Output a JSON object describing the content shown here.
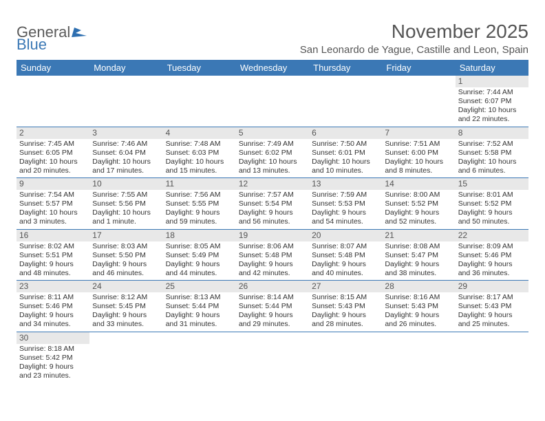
{
  "logo": {
    "text1": "General",
    "text2": "Blue"
  },
  "title": "November 2025",
  "location": "San Leonardo de Yague, Castille and Leon, Spain",
  "weekdays": [
    "Sunday",
    "Monday",
    "Tuesday",
    "Wednesday",
    "Thursday",
    "Friday",
    "Saturday"
  ],
  "header_bg": "#3b78b5",
  "daynum_bg": "#e8e8e8",
  "weeks": [
    [
      null,
      null,
      null,
      null,
      null,
      null,
      {
        "n": "1",
        "sr": "Sunrise: 7:44 AM",
        "ss": "Sunset: 6:07 PM",
        "dl": "Daylight: 10 hours and 22 minutes."
      }
    ],
    [
      {
        "n": "2",
        "sr": "Sunrise: 7:45 AM",
        "ss": "Sunset: 6:05 PM",
        "dl": "Daylight: 10 hours and 20 minutes."
      },
      {
        "n": "3",
        "sr": "Sunrise: 7:46 AM",
        "ss": "Sunset: 6:04 PM",
        "dl": "Daylight: 10 hours and 17 minutes."
      },
      {
        "n": "4",
        "sr": "Sunrise: 7:48 AM",
        "ss": "Sunset: 6:03 PM",
        "dl": "Daylight: 10 hours and 15 minutes."
      },
      {
        "n": "5",
        "sr": "Sunrise: 7:49 AM",
        "ss": "Sunset: 6:02 PM",
        "dl": "Daylight: 10 hours and 13 minutes."
      },
      {
        "n": "6",
        "sr": "Sunrise: 7:50 AM",
        "ss": "Sunset: 6:01 PM",
        "dl": "Daylight: 10 hours and 10 minutes."
      },
      {
        "n": "7",
        "sr": "Sunrise: 7:51 AM",
        "ss": "Sunset: 6:00 PM",
        "dl": "Daylight: 10 hours and 8 minutes."
      },
      {
        "n": "8",
        "sr": "Sunrise: 7:52 AM",
        "ss": "Sunset: 5:58 PM",
        "dl": "Daylight: 10 hours and 6 minutes."
      }
    ],
    [
      {
        "n": "9",
        "sr": "Sunrise: 7:54 AM",
        "ss": "Sunset: 5:57 PM",
        "dl": "Daylight: 10 hours and 3 minutes."
      },
      {
        "n": "10",
        "sr": "Sunrise: 7:55 AM",
        "ss": "Sunset: 5:56 PM",
        "dl": "Daylight: 10 hours and 1 minute."
      },
      {
        "n": "11",
        "sr": "Sunrise: 7:56 AM",
        "ss": "Sunset: 5:55 PM",
        "dl": "Daylight: 9 hours and 59 minutes."
      },
      {
        "n": "12",
        "sr": "Sunrise: 7:57 AM",
        "ss": "Sunset: 5:54 PM",
        "dl": "Daylight: 9 hours and 56 minutes."
      },
      {
        "n": "13",
        "sr": "Sunrise: 7:59 AM",
        "ss": "Sunset: 5:53 PM",
        "dl": "Daylight: 9 hours and 54 minutes."
      },
      {
        "n": "14",
        "sr": "Sunrise: 8:00 AM",
        "ss": "Sunset: 5:52 PM",
        "dl": "Daylight: 9 hours and 52 minutes."
      },
      {
        "n": "15",
        "sr": "Sunrise: 8:01 AM",
        "ss": "Sunset: 5:52 PM",
        "dl": "Daylight: 9 hours and 50 minutes."
      }
    ],
    [
      {
        "n": "16",
        "sr": "Sunrise: 8:02 AM",
        "ss": "Sunset: 5:51 PM",
        "dl": "Daylight: 9 hours and 48 minutes."
      },
      {
        "n": "17",
        "sr": "Sunrise: 8:03 AM",
        "ss": "Sunset: 5:50 PM",
        "dl": "Daylight: 9 hours and 46 minutes."
      },
      {
        "n": "18",
        "sr": "Sunrise: 8:05 AM",
        "ss": "Sunset: 5:49 PM",
        "dl": "Daylight: 9 hours and 44 minutes."
      },
      {
        "n": "19",
        "sr": "Sunrise: 8:06 AM",
        "ss": "Sunset: 5:48 PM",
        "dl": "Daylight: 9 hours and 42 minutes."
      },
      {
        "n": "20",
        "sr": "Sunrise: 8:07 AM",
        "ss": "Sunset: 5:48 PM",
        "dl": "Daylight: 9 hours and 40 minutes."
      },
      {
        "n": "21",
        "sr": "Sunrise: 8:08 AM",
        "ss": "Sunset: 5:47 PM",
        "dl": "Daylight: 9 hours and 38 minutes."
      },
      {
        "n": "22",
        "sr": "Sunrise: 8:09 AM",
        "ss": "Sunset: 5:46 PM",
        "dl": "Daylight: 9 hours and 36 minutes."
      }
    ],
    [
      {
        "n": "23",
        "sr": "Sunrise: 8:11 AM",
        "ss": "Sunset: 5:46 PM",
        "dl": "Daylight: 9 hours and 34 minutes."
      },
      {
        "n": "24",
        "sr": "Sunrise: 8:12 AM",
        "ss": "Sunset: 5:45 PM",
        "dl": "Daylight: 9 hours and 33 minutes."
      },
      {
        "n": "25",
        "sr": "Sunrise: 8:13 AM",
        "ss": "Sunset: 5:44 PM",
        "dl": "Daylight: 9 hours and 31 minutes."
      },
      {
        "n": "26",
        "sr": "Sunrise: 8:14 AM",
        "ss": "Sunset: 5:44 PM",
        "dl": "Daylight: 9 hours and 29 minutes."
      },
      {
        "n": "27",
        "sr": "Sunrise: 8:15 AM",
        "ss": "Sunset: 5:43 PM",
        "dl": "Daylight: 9 hours and 28 minutes."
      },
      {
        "n": "28",
        "sr": "Sunrise: 8:16 AM",
        "ss": "Sunset: 5:43 PM",
        "dl": "Daylight: 9 hours and 26 minutes."
      },
      {
        "n": "29",
        "sr": "Sunrise: 8:17 AM",
        "ss": "Sunset: 5:43 PM",
        "dl": "Daylight: 9 hours and 25 minutes."
      }
    ],
    [
      {
        "n": "30",
        "sr": "Sunrise: 8:18 AM",
        "ss": "Sunset: 5:42 PM",
        "dl": "Daylight: 9 hours and 23 minutes."
      },
      null,
      null,
      null,
      null,
      null,
      null
    ]
  ]
}
